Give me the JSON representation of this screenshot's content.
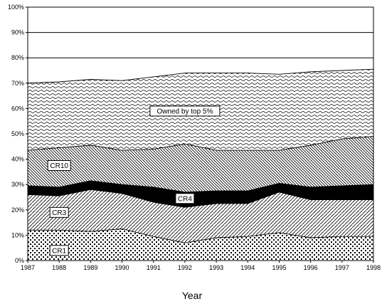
{
  "chart_data": {
    "type": "area",
    "xlabel": "Year",
    "ylabel": "",
    "ylim": [
      0,
      100
    ],
    "yticks": [
      "0%",
      "10%",
      "20%",
      "30%",
      "40%",
      "50%",
      "60%",
      "70%",
      "80%",
      "90%",
      "100%"
    ],
    "x": [
      "1987",
      "1988",
      "1989",
      "1990",
      "1991",
      "1992",
      "1993",
      "1994",
      "1995",
      "1996",
      "1997",
      "1998"
    ],
    "grid": true,
    "legend": "none",
    "series": [
      {
        "name": "CR1",
        "values": [
          12,
          12,
          11.5,
          12.5,
          9.5,
          7,
          9,
          9.5,
          11,
          9,
          9.5,
          9.5
        ]
      },
      {
        "values": [
          26,
          25.5,
          28,
          26.5,
          23,
          21,
          22.5,
          22.5,
          27,
          24,
          24,
          24
        ]
      },
      {
        "name": "CR3",
        "values": [
          26,
          25.5,
          28,
          26.5,
          23,
          21,
          22.5,
          22.5,
          27,
          24,
          24,
          24
        ]
      },
      {
        "name": "CR4",
        "values": [
          29.5,
          29,
          31.5,
          30,
          29,
          27,
          27.5,
          27.5,
          30.5,
          29,
          29.5,
          30
        ]
      },
      {
        "name": "CR10",
        "values": [
          43.5,
          44.5,
          45.5,
          43.5,
          44,
          46,
          43.5,
          43.5,
          43.5,
          45.5,
          48,
          49
        ]
      },
      {
        "name": "Owned by top 5%",
        "values": [
          70,
          70.5,
          71.5,
          71,
          72.5,
          74,
          74,
          74,
          73.5,
          74.5,
          75,
          75.5
        ]
      }
    ],
    "labels": [
      {
        "text": "CR1",
        "series": 0
      },
      {
        "text": "CR3",
        "series": 2
      },
      {
        "text": "CR4",
        "series": 3
      },
      {
        "text": "CR10",
        "series": 4
      },
      {
        "text": "Owned by top 5%",
        "series": 5
      }
    ]
  }
}
